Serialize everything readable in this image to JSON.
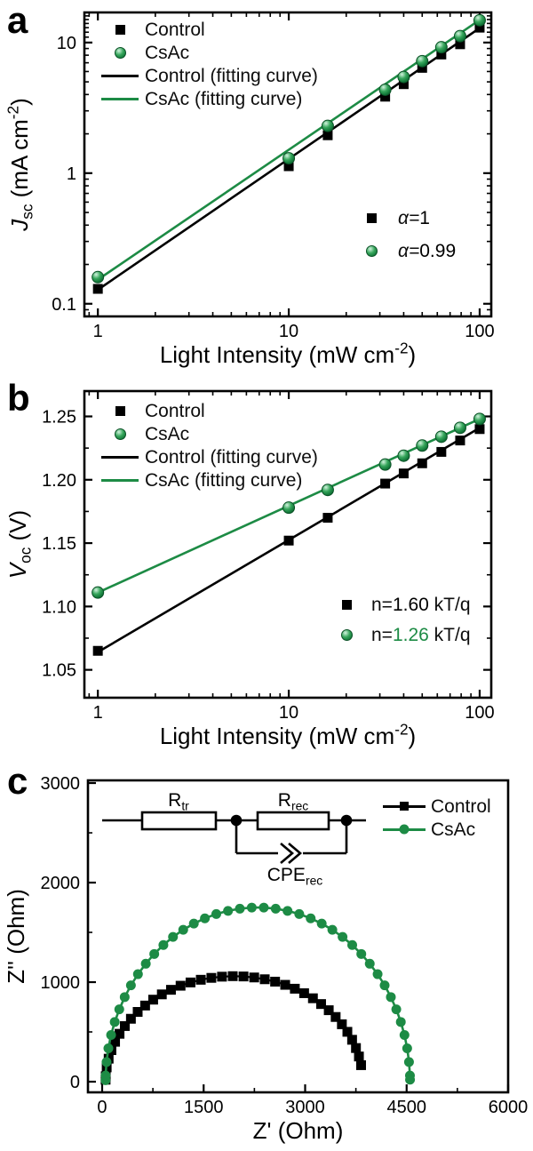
{
  "colors": {
    "black": "#000000",
    "green": "#1d8b45",
    "green_light": "#d2f3de",
    "green_dark": "#0a5126"
  },
  "panels": {
    "a": {
      "letter": "a",
      "legend": [
        {
          "marker": "square",
          "color": "#000000",
          "label": "Control"
        },
        {
          "marker": "sphere",
          "color": "#1d8b45",
          "label": "CsAc"
        },
        {
          "marker": "line",
          "color": "#000000",
          "label": "Control (fitting curve)"
        },
        {
          "marker": "line",
          "color": "#1d8b45",
          "label": "CsAc (fitting curve)"
        }
      ],
      "annotations": [
        {
          "marker": "square",
          "pre": "α=",
          "val": "1",
          "suf": "",
          "val_color": "#000000"
        },
        {
          "marker": "sphere",
          "pre": "α=",
          "val": "0.99",
          "suf": "",
          "val_color": "#000000"
        }
      ]
    },
    "b": {
      "letter": "b",
      "legend": [
        {
          "marker": "square",
          "color": "#000000",
          "label": "Control"
        },
        {
          "marker": "sphere",
          "color": "#1d8b45",
          "label": "CsAc"
        },
        {
          "marker": "line",
          "color": "#000000",
          "label": "Control (fitting curve)"
        },
        {
          "marker": "line",
          "color": "#1d8b45",
          "label": "CsAc (fitting curve)"
        }
      ],
      "annotations": [
        {
          "marker": "square",
          "pre": "n=",
          "val": "1.60",
          "suf": " kT/q",
          "val_color": "#000000"
        },
        {
          "marker": "sphere",
          "pre": "n=",
          "val": "1.26",
          "suf": " kT/q",
          "val_color": "#1d8b45"
        }
      ]
    },
    "c": {
      "letter": "c",
      "legend": [
        {
          "marker": "line-square",
          "color": "#000000",
          "label": "Control"
        },
        {
          "marker": "line-circle",
          "color": "#1d8b45",
          "label": "CsAc"
        }
      ],
      "circuit": {
        "labels": {
          "r_tr": [
            {
              "t": "R"
            },
            {
              "t": "tr",
              "sub": true
            }
          ],
          "r_rec": [
            {
              "t": "R"
            },
            {
              "t": "rec",
              "sub": true
            }
          ],
          "cpe": [
            {
              "t": "CPE"
            },
            {
              "t": "rec",
              "sub": true
            }
          ]
        }
      }
    }
  },
  "chart_data": [
    {
      "id": "chart-a",
      "type": "line",
      "log_x": true,
      "log_y": true,
      "xlim": [
        0.85,
        115
      ],
      "ylim": [
        0.08,
        17
      ],
      "plot": {
        "l": 95,
        "t": 14,
        "r": 553,
        "b": 356
      },
      "tick_sides": [
        "bottom",
        "left",
        "top",
        "right"
      ],
      "x_ticks": [
        {
          "v": 1,
          "label": "1"
        },
        {
          "v": 10,
          "label": "10"
        },
        {
          "v": 100,
          "label": "100"
        }
      ],
      "x_minor": [
        0.9,
        2,
        3,
        4,
        5,
        6,
        7,
        8,
        9,
        20,
        30,
        40,
        50,
        60,
        70,
        80,
        90
      ],
      "y_ticks": [
        {
          "v": 0.1,
          "label": "0.1"
        },
        {
          "v": 1,
          "label": "1"
        },
        {
          "v": 10,
          "label": "10"
        }
      ],
      "y_minor": [
        0.09,
        0.2,
        0.3,
        0.4,
        0.5,
        0.6,
        0.7,
        0.8,
        0.9,
        2,
        3,
        4,
        5,
        6,
        7,
        8,
        9,
        11,
        12,
        13,
        14,
        15,
        16
      ],
      "xlabel": [
        {
          "t": "Light Intensity (mW cm"
        },
        {
          "t": "-2",
          "sup": true
        },
        {
          "t": ")"
        }
      ],
      "ylabel": [
        {
          "t": "J",
          "italic": true
        },
        {
          "t": "sc",
          "sub": true
        },
        {
          "t": " (mA cm"
        },
        {
          "t": "-2",
          "sup": true
        },
        {
          "t": ")"
        }
      ],
      "fit_lines": [
        {
          "name": "Control (fitting curve)",
          "color": "#000000",
          "width": 2.6,
          "x": [
            1,
            100
          ],
          "y": [
            0.128,
            12.9
          ]
        },
        {
          "name": "CsAc (fitting curve)",
          "color": "#1d8b45",
          "width": 2.6,
          "x": [
            1,
            100
          ],
          "y": [
            0.153,
            14.9
          ]
        }
      ],
      "series": [
        {
          "name": "Control",
          "marker": "square",
          "size": 11,
          "color": "#000000",
          "alpha": "α=1",
          "x": [
            1,
            10,
            16,
            32,
            40,
            50,
            63,
            79,
            100
          ],
          "y": [
            0.13,
            1.13,
            1.95,
            3.85,
            4.8,
            6.4,
            8.1,
            9.7,
            13.0
          ]
        },
        {
          "name": "CsAc",
          "marker": "sphere",
          "size": 13,
          "color": "#1d8b45",
          "alpha": "α=0.99",
          "x": [
            1,
            10,
            16,
            32,
            40,
            50,
            63,
            79,
            100
          ],
          "y": [
            0.16,
            1.3,
            2.3,
            4.35,
            5.45,
            7.2,
            9.2,
            11.2,
            14.8
          ]
        }
      ]
    },
    {
      "id": "chart-b",
      "type": "line",
      "log_x": true,
      "log_y": false,
      "xlim": [
        0.85,
        115
      ],
      "ylim": [
        1.028,
        1.27
      ],
      "plot": {
        "l": 95,
        "t": 15,
        "r": 553,
        "b": 360
      },
      "tick_sides": [
        "bottom",
        "left",
        "top",
        "right"
      ],
      "x_ticks": [
        {
          "v": 1,
          "label": "1"
        },
        {
          "v": 10,
          "label": "10"
        },
        {
          "v": 100,
          "label": "100"
        }
      ],
      "x_minor": [
        0.9,
        2,
        3,
        4,
        5,
        6,
        7,
        8,
        9,
        20,
        30,
        40,
        50,
        60,
        70,
        80,
        90
      ],
      "y_ticks": [
        {
          "v": 1.05,
          "label": "1.05"
        },
        {
          "v": 1.1,
          "label": "1.10"
        },
        {
          "v": 1.15,
          "label": "1.15"
        },
        {
          "v": 1.2,
          "label": "1.20"
        },
        {
          "v": 1.25,
          "label": "1.25"
        }
      ],
      "y_minor": [
        1.075,
        1.125,
        1.175,
        1.225
      ],
      "xlabel": [
        {
          "t": "Light Intensity (mW cm"
        },
        {
          "t": "-2",
          "sup": true
        },
        {
          "t": ")"
        }
      ],
      "ylabel": [
        {
          "t": "V",
          "italic": true
        },
        {
          "t": "oc",
          "sub": true
        },
        {
          "t": " (V)"
        }
      ],
      "fit_lines": [
        {
          "name": "Control (fitting curve)",
          "color": "#000000",
          "width": 2.6,
          "x": [
            1,
            100
          ],
          "y": [
            1.064,
            1.241
          ]
        },
        {
          "name": "CsAc (fitting curve)",
          "color": "#1d8b45",
          "width": 2.6,
          "x": [
            1,
            100
          ],
          "y": [
            1.111,
            1.248
          ]
        }
      ],
      "series": [
        {
          "name": "Control",
          "marker": "square",
          "size": 11,
          "color": "#000000",
          "ideality": "n=1.60 kT/q",
          "x": [
            1,
            10,
            16,
            32,
            40,
            50,
            63,
            79,
            100
          ],
          "y": [
            1.065,
            1.152,
            1.17,
            1.197,
            1.205,
            1.213,
            1.222,
            1.231,
            1.24
          ]
        },
        {
          "name": "CsAc",
          "marker": "sphere",
          "size": 13,
          "color": "#1d8b45",
          "ideality": "n=1.26 kT/q",
          "x": [
            1,
            10,
            16,
            32,
            40,
            50,
            63,
            79,
            100
          ],
          "y": [
            1.111,
            1.178,
            1.192,
            1.212,
            1.219,
            1.227,
            1.234,
            1.241,
            1.248
          ]
        }
      ]
    },
    {
      "id": "chart-c",
      "type": "line",
      "log_x": false,
      "log_y": false,
      "xlim": [
        -210,
        6000
      ],
      "ylim": [
        -107,
        3027
      ],
      "plot": {
        "l": 99,
        "t": 23,
        "r": 572,
        "b": 374
      },
      "tick_sides": [
        "bottom",
        "left"
      ],
      "x_ticks": [
        {
          "v": 0,
          "label": "0"
        },
        {
          "v": 1500,
          "label": "1500"
        },
        {
          "v": 3000,
          "label": "3000"
        },
        {
          "v": 4500,
          "label": "4500"
        },
        {
          "v": 6000,
          "label": "6000"
        }
      ],
      "x_minor": [
        750,
        2250,
        3750,
        5250
      ],
      "y_ticks": [
        {
          "v": 0,
          "label": "0"
        },
        {
          "v": 1000,
          "label": "1000"
        },
        {
          "v": 2000,
          "label": "2000"
        },
        {
          "v": 3000,
          "label": "3000"
        }
      ],
      "y_minor": [
        500,
        1500,
        2500
      ],
      "xlabel": [
        {
          "t": "Z' (Ohm)"
        }
      ],
      "ylabel": [
        {
          "t": "Z'' (Ohm)"
        }
      ],
      "fit_lines": [],
      "series": [
        {
          "name": "Control",
          "marker": "square",
          "size": 11,
          "color": "#000000",
          "line": true,
          "line_width": 2.2,
          "points": [
            [
              51,
              20
            ],
            [
              53,
              55
            ],
            [
              67,
              144
            ],
            [
              96,
              231
            ],
            [
              137,
              317
            ],
            [
              191,
              401
            ],
            [
              257,
              481
            ],
            [
              335,
              559
            ],
            [
              425,
              632
            ],
            [
              525,
              701
            ],
            [
              635,
              765
            ],
            [
              754,
              824
            ],
            [
              882,
              877
            ],
            [
              1017,
              923
            ],
            [
              1159,
              964
            ],
            [
              1306,
              997
            ],
            [
              1458,
              1024
            ],
            [
              1614,
              1043
            ],
            [
              1771,
              1055
            ],
            [
              1930,
              1060
            ],
            [
              2089,
              1057
            ],
            [
              2247,
              1047
            ],
            [
              2403,
              1029
            ],
            [
              2556,
              1005
            ],
            [
              2705,
              973
            ],
            [
              2848,
              934
            ],
            [
              2985,
              889
            ],
            [
              3115,
              838
            ],
            [
              3236,
              780
            ],
            [
              3349,
              718
            ],
            [
              3451,
              650
            ],
            [
              3543,
              577
            ],
            [
              3624,
              501
            ],
            [
              3694,
              421
            ],
            [
              3751,
              338
            ],
            [
              3795,
              253
            ],
            [
              3827,
              166
            ]
          ]
        },
        {
          "name": "CsAc",
          "marker": "circle",
          "size": 11,
          "color": "#1d8b45",
          "line": true,
          "line_width": 2.6,
          "points": [
            [
              50,
              15
            ],
            [
              51,
              61
            ],
            [
              65,
              198
            ],
            [
              92,
              335
            ],
            [
              132,
              469
            ],
            [
              186,
              600
            ],
            [
              253,
              727
            ],
            [
              333,
              850
            ],
            [
              425,
              968
            ],
            [
              529,
              1080
            ],
            [
              645,
              1185
            ],
            [
              770,
              1283
            ],
            [
              905,
              1373
            ],
            [
              1047,
              1454
            ],
            [
              1198,
              1526
            ],
            [
              1355,
              1588
            ],
            [
              1518,
              1641
            ],
            [
              1687,
              1684
            ],
            [
              1860,
              1716
            ],
            [
              2035,
              1738
            ],
            [
              2211,
              1749
            ],
            [
              2389,
              1749
            ],
            [
              2565,
              1738
            ],
            [
              2740,
              1716
            ],
            [
              2913,
              1684
            ],
            [
              3082,
              1641
            ],
            [
              3245,
              1588
            ],
            [
              3402,
              1526
            ],
            [
              3553,
              1454
            ],
            [
              3696,
              1373
            ],
            [
              3830,
              1283
            ],
            [
              3955,
              1185
            ],
            [
              4071,
              1080
            ],
            [
              4175,
              968
            ],
            [
              4267,
              850
            ],
            [
              4347,
              727
            ],
            [
              4414,
              600
            ],
            [
              4468,
              469
            ],
            [
              4508,
              335
            ],
            [
              4535,
              198
            ],
            [
              4549,
              61
            ],
            [
              4550,
              20
            ]
          ]
        }
      ]
    }
  ]
}
